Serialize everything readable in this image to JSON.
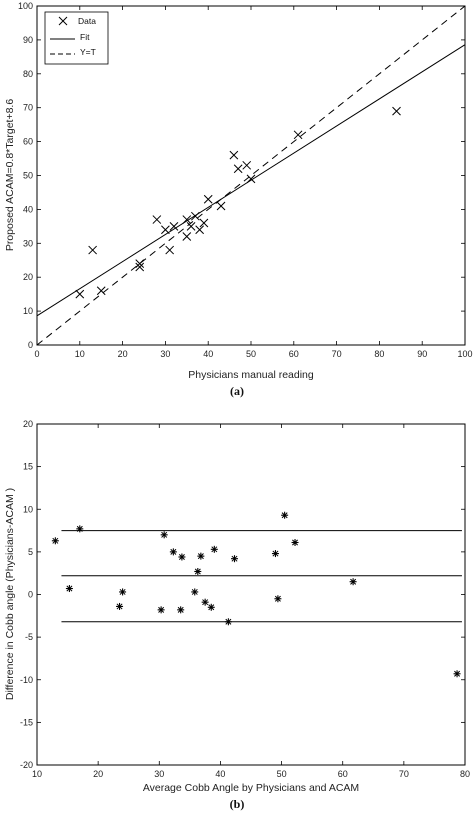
{
  "chart_data": [
    {
      "panel_label": "(a)",
      "type": "scatter",
      "xlabel": "Physicians manual reading",
      "ylabel": "Proposed ACAM=0.8*Target+8.6",
      "xlim": [
        0,
        100
      ],
      "ylim": [
        0,
        100
      ],
      "x_ticks": [
        0,
        10,
        20,
        30,
        40,
        50,
        60,
        70,
        80,
        90,
        100
      ],
      "y_ticks": [
        0,
        10,
        20,
        30,
        40,
        50,
        60,
        70,
        80,
        90,
        100
      ],
      "legend": {
        "position": "top-left",
        "entries": [
          "Data",
          "Fit",
          "Y=T"
        ]
      },
      "series": [
        {
          "name": "Data",
          "marker": "x",
          "points": [
            [
              10,
              15
            ],
            [
              13,
              28
            ],
            [
              15,
              16
            ],
            [
              24,
              23
            ],
            [
              24,
              24
            ],
            [
              28,
              37
            ],
            [
              30,
              34
            ],
            [
              31,
              28
            ],
            [
              32,
              35
            ],
            [
              35,
              32
            ],
            [
              35,
              37
            ],
            [
              36,
              35
            ],
            [
              37,
              38
            ],
            [
              38,
              34
            ],
            [
              39,
              36
            ],
            [
              40,
              43
            ],
            [
              43,
              41
            ],
            [
              46,
              56
            ],
            [
              47,
              52
            ],
            [
              49,
              53
            ],
            [
              50,
              49
            ],
            [
              61,
              62
            ],
            [
              84,
              69
            ]
          ]
        },
        {
          "name": "Fit",
          "style": "solid",
          "slope": 0.8,
          "intercept": 8.6
        },
        {
          "name": "Y=T",
          "style": "dashed",
          "slope": 1,
          "intercept": 0
        }
      ]
    },
    {
      "panel_label": "(b)",
      "type": "scatter",
      "xlabel": "Average Cobb Angle by Physicians and ACAM",
      "ylabel": "Difference in Cobb angle (Physicians-ACAM )",
      "xlim": [
        10,
        80
      ],
      "ylim": [
        -20,
        20
      ],
      "x_ticks": [
        10,
        20,
        30,
        40,
        50,
        60,
        70,
        80
      ],
      "y_ticks": [
        -20,
        -15,
        -10,
        -5,
        0,
        5,
        10,
        15,
        20
      ],
      "hlines": [
        7.5,
        2.2,
        -3.2
      ],
      "series": [
        {
          "marker": "*",
          "points": [
            [
              13,
              6.3
            ],
            [
              15.3,
              0.7
            ],
            [
              17,
              7.7
            ],
            [
              23.5,
              -1.4
            ],
            [
              24,
              0.3
            ],
            [
              30.3,
              -1.8
            ],
            [
              30.8,
              7
            ],
            [
              32.3,
              5
            ],
            [
              33.5,
              -1.8
            ],
            [
              33.7,
              4.4
            ],
            [
              35.8,
              0.3
            ],
            [
              36.3,
              2.7
            ],
            [
              36.8,
              4.5
            ],
            [
              37.5,
              -0.9
            ],
            [
              38.5,
              -1.5
            ],
            [
              39,
              5.3
            ],
            [
              41.3,
              -3.2
            ],
            [
              42.3,
              4.2
            ],
            [
              49,
              4.8
            ],
            [
              49.4,
              -0.5
            ],
            [
              50.5,
              9.3
            ],
            [
              52.2,
              6.1
            ],
            [
              61.7,
              1.5
            ],
            [
              78.7,
              -9.3
            ]
          ]
        }
      ]
    }
  ]
}
